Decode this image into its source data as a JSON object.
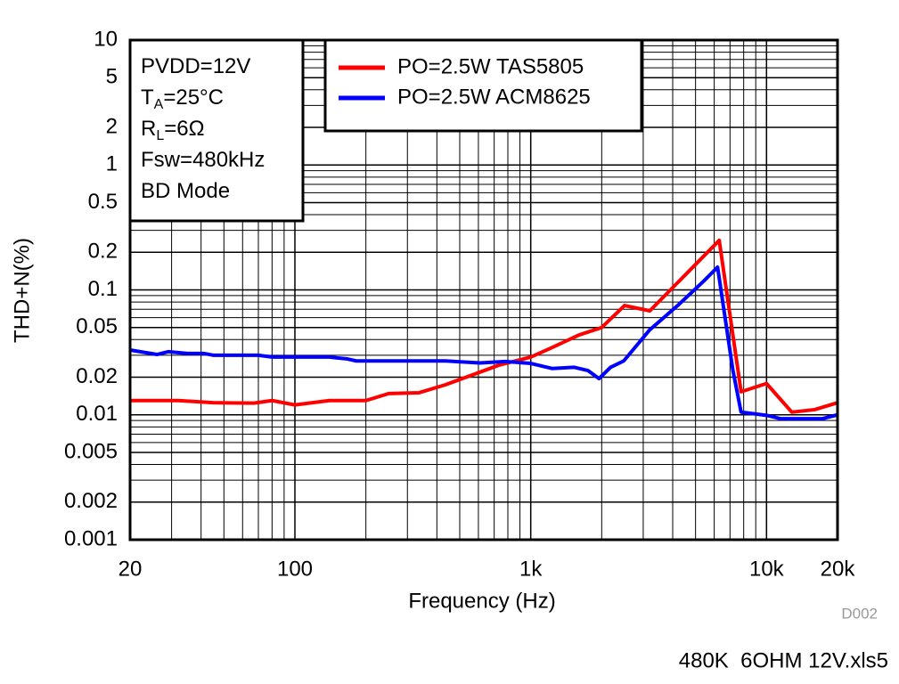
{
  "chart_data": {
    "type": "line",
    "x_label": "Frequency (Hz)",
    "y_label": "THD+N(%)",
    "xscale": "log",
    "yscale": "log",
    "grid": "log-minor",
    "xlim": [
      20,
      20000
    ],
    "ylim": [
      0.001,
      10
    ],
    "xticks": [
      20,
      100,
      {
        "value": 1000,
        "label": "1k"
      },
      {
        "value": 10000,
        "label": "10k"
      },
      {
        "value": 20000,
        "label": "20k"
      }
    ],
    "yticks": [
      10,
      5,
      2,
      1,
      0.5,
      0.2,
      0.1,
      0.05,
      0.02,
      0.01,
      0.005,
      0.002,
      0.001
    ],
    "annotation": [
      [
        "PVDD=12V"
      ],
      [
        "T",
        "A",
        "=25°C"
      ],
      [
        "R",
        "L",
        "=6Ω"
      ],
      [
        "Fsw=480kHz"
      ],
      [
        "BD Mode"
      ]
    ],
    "legend": "upper center",
    "series": [
      {
        "name": "PO=2.5W TAS5805",
        "color": "#ff0000",
        "x": [
          20,
          32,
          45,
          67,
          80,
          100,
          140,
          200,
          250,
          335,
          435,
          520,
          734,
          1000,
          1230,
          1600,
          2000,
          2500,
          3200,
          6300,
          7800,
          10000,
          12800,
          16000,
          20000
        ],
        "values": [
          0.013,
          0.013,
          0.0125,
          0.0124,
          0.013,
          0.012,
          0.013,
          0.013,
          0.0148,
          0.015,
          0.0174,
          0.0197,
          0.025,
          0.029,
          0.0345,
          0.0435,
          0.05,
          0.075,
          0.068,
          0.249,
          0.0153,
          0.0178,
          0.0105,
          0.011,
          0.0125
        ]
      },
      {
        "name": "PO=2.5W ACM8625",
        "color": "#0000ff",
        "x": [
          20,
          26,
          29,
          35,
          41,
          45,
          70,
          80,
          140,
          167,
          182,
          435,
          610,
          780,
          1000,
          1230,
          1530,
          1750,
          1950,
          2180,
          2480,
          3200,
          4200,
          5400,
          6200,
          7200,
          7800,
          10000,
          11500,
          17200,
          20000
        ],
        "values": [
          0.033,
          0.0304,
          0.032,
          0.031,
          0.031,
          0.03,
          0.03,
          0.029,
          0.029,
          0.028,
          0.027,
          0.027,
          0.026,
          0.0267,
          0.0258,
          0.0235,
          0.024,
          0.0226,
          0.0195,
          0.024,
          0.027,
          0.048,
          0.075,
          0.117,
          0.152,
          0.0227,
          0.0105,
          0.0099,
          0.0093,
          0.0093,
          0.01
        ]
      }
    ],
    "figure_id": "D002",
    "file_name": "480K  6OHM 12V.xls5"
  }
}
